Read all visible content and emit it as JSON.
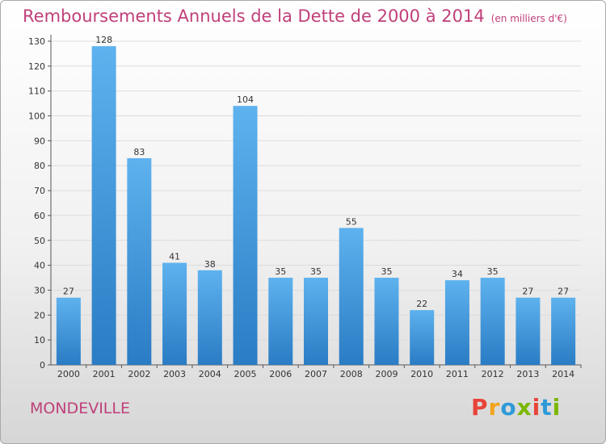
{
  "chart_data": {
    "type": "bar",
    "title": "Remboursements Annuels de la Dette de 2000 à 2014",
    "subtitle": "(en milliers d'€)",
    "categories": [
      "2000",
      "2001",
      "2002",
      "2003",
      "2004",
      "2005",
      "2006",
      "2007",
      "2008",
      "2009",
      "2010",
      "2011",
      "2012",
      "2013",
      "2014"
    ],
    "values": [
      27,
      128,
      83,
      41,
      38,
      104,
      35,
      35,
      55,
      35,
      22,
      34,
      35,
      27,
      27
    ],
    "xlabel": "",
    "ylabel": "",
    "ylim": [
      0,
      130
    ],
    "yticks": [
      0,
      10,
      20,
      30,
      40,
      50,
      60,
      70,
      80,
      90,
      100,
      110,
      120,
      130
    ],
    "grid": true,
    "bar_color": "#4a9fe0"
  },
  "footer": {
    "commune": "MONDEVILLE",
    "logo": "Proxiti",
    "logo_colors": [
      "#e8443a",
      "#f4a31c",
      "#2e9ad8",
      "#7ab800",
      "#e8443a",
      "#2e9ad8",
      "#7ab800"
    ]
  }
}
